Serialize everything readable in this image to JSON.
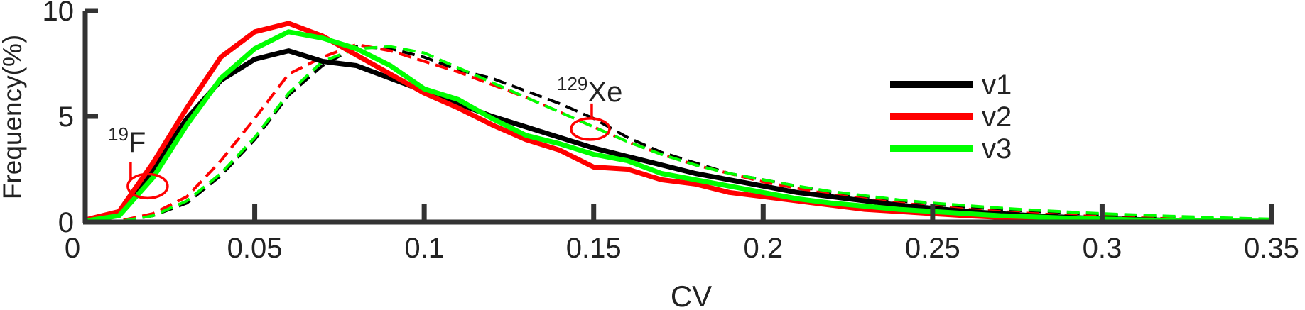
{
  "chart_data": {
    "type": "line",
    "xlabel": "CV",
    "ylabel": "Frequency(%)",
    "xlim": [
      0,
      0.35
    ],
    "ylim": [
      0,
      10
    ],
    "xticks": [
      0,
      0.05,
      0.1,
      0.15,
      0.2,
      0.25,
      0.3,
      0.35
    ],
    "xtick_labels": [
      "0",
      "0.05",
      "0.1",
      "0.15",
      "0.2",
      "0.25",
      "0.3",
      "0.35"
    ],
    "yticks": [
      0,
      5,
      10
    ],
    "ytick_labels": [
      "0",
      "5",
      "10"
    ],
    "grid": false,
    "legend_position": "upper-right",
    "series": [
      {
        "name": "v1",
        "group": "19F",
        "style": "solid",
        "color": "#000000",
        "x": [
          0,
          0.01,
          0.02,
          0.03,
          0.04,
          0.05,
          0.06,
          0.07,
          0.08,
          0.09,
          0.1,
          0.11,
          0.12,
          0.13,
          0.14,
          0.15,
          0.16,
          0.17,
          0.18,
          0.19,
          0.2,
          0.21,
          0.22,
          0.23,
          0.24,
          0.25,
          0.26,
          0.27,
          0.28,
          0.29,
          0.3,
          0.31,
          0.32,
          0.33,
          0.34,
          0.35
        ],
        "y": [
          0.05,
          0.4,
          2.5,
          4.9,
          6.7,
          7.7,
          8.1,
          7.6,
          7.4,
          6.8,
          6.2,
          5.6,
          5.0,
          4.5,
          4.0,
          3.5,
          3.1,
          2.7,
          2.3,
          2.0,
          1.7,
          1.4,
          1.2,
          1.0,
          0.8,
          0.65,
          0.5,
          0.4,
          0.3,
          0.22,
          0.16,
          0.12,
          0.08,
          0.06,
          0.04,
          0.02
        ]
      },
      {
        "name": "v2",
        "group": "19F",
        "style": "solid",
        "color": "#ff0000",
        "x": [
          0,
          0.01,
          0.02,
          0.03,
          0.04,
          0.05,
          0.06,
          0.07,
          0.08,
          0.09,
          0.1,
          0.11,
          0.12,
          0.13,
          0.14,
          0.15,
          0.16,
          0.17,
          0.18,
          0.19,
          0.2,
          0.21,
          0.22,
          0.23,
          0.24,
          0.25,
          0.26,
          0.27,
          0.28,
          0.29,
          0.3,
          0.31,
          0.32,
          0.33,
          0.34,
          0.35
        ],
        "y": [
          0.1,
          0.5,
          2.8,
          5.4,
          7.8,
          9.0,
          9.4,
          8.8,
          7.9,
          7.0,
          6.1,
          5.4,
          4.6,
          3.9,
          3.4,
          2.6,
          2.5,
          2.0,
          1.8,
          1.4,
          1.2,
          1.0,
          0.8,
          0.6,
          0.5,
          0.4,
          0.3,
          0.22,
          0.16,
          0.12,
          0.08,
          0.06,
          0.04,
          0.03,
          0.02,
          0.01
        ]
      },
      {
        "name": "v3",
        "group": "19F",
        "style": "solid",
        "color": "#00ff00",
        "x": [
          0,
          0.01,
          0.02,
          0.03,
          0.04,
          0.05,
          0.06,
          0.07,
          0.08,
          0.09,
          0.1,
          0.11,
          0.12,
          0.13,
          0.14,
          0.15,
          0.16,
          0.17,
          0.18,
          0.19,
          0.2,
          0.21,
          0.22,
          0.23,
          0.24,
          0.25,
          0.26,
          0.27,
          0.28,
          0.29,
          0.3,
          0.31,
          0.32,
          0.33,
          0.34,
          0.35
        ],
        "y": [
          0.05,
          0.3,
          2.1,
          4.6,
          6.8,
          8.2,
          9.0,
          8.7,
          8.2,
          7.4,
          6.3,
          5.8,
          4.9,
          4.1,
          3.7,
          3.2,
          2.9,
          2.3,
          2.0,
          1.7,
          1.4,
          1.1,
          0.9,
          0.75,
          0.6,
          0.5,
          0.4,
          0.3,
          0.24,
          0.18,
          0.14,
          0.1,
          0.08,
          0.06,
          0.05,
          0.04
        ]
      },
      {
        "name": "v1",
        "group": "129Xe",
        "style": "dashed",
        "color": "#000000",
        "x": [
          0,
          0.01,
          0.02,
          0.03,
          0.04,
          0.05,
          0.06,
          0.07,
          0.08,
          0.09,
          0.1,
          0.11,
          0.12,
          0.13,
          0.14,
          0.15,
          0.16,
          0.17,
          0.18,
          0.19,
          0.2,
          0.21,
          0.22,
          0.23,
          0.24,
          0.25,
          0.26,
          0.27,
          0.28,
          0.29,
          0.3,
          0.31,
          0.32,
          0.33,
          0.34,
          0.35
        ],
        "y": [
          0.0,
          0.02,
          0.3,
          0.9,
          2.2,
          3.9,
          6.0,
          7.4,
          8.3,
          8.2,
          7.8,
          7.2,
          6.8,
          6.2,
          5.6,
          4.9,
          4.0,
          3.3,
          2.8,
          2.3,
          2.0,
          1.7,
          1.4,
          1.2,
          1.0,
          0.85,
          0.7,
          0.6,
          0.5,
          0.42,
          0.34,
          0.28,
          0.22,
          0.17,
          0.12,
          0.08
        ]
      },
      {
        "name": "v2",
        "group": "129Xe",
        "style": "dashed",
        "color": "#ff0000",
        "x": [
          0,
          0.01,
          0.02,
          0.03,
          0.04,
          0.05,
          0.06,
          0.07,
          0.08,
          0.09,
          0.1,
          0.11,
          0.12,
          0.13,
          0.14,
          0.15,
          0.16,
          0.17,
          0.18,
          0.19,
          0.2,
          0.21,
          0.22,
          0.23,
          0.24,
          0.25,
          0.26,
          0.27,
          0.28,
          0.29,
          0.3,
          0.31,
          0.32,
          0.33,
          0.34,
          0.35
        ],
        "y": [
          0.0,
          0.05,
          0.4,
          1.2,
          2.9,
          4.9,
          7.0,
          7.8,
          8.4,
          8.1,
          7.6,
          7.1,
          6.5,
          5.9,
          5.2,
          4.5,
          3.8,
          3.2,
          2.7,
          2.3,
          1.9,
          1.6,
          1.3,
          1.1,
          0.9,
          0.75,
          0.6,
          0.5,
          0.4,
          0.32,
          0.26,
          0.2,
          0.16,
          0.12,
          0.09,
          0.06
        ]
      },
      {
        "name": "v3",
        "group": "129Xe",
        "style": "dashed",
        "color": "#00ff00",
        "x": [
          0,
          0.01,
          0.02,
          0.03,
          0.04,
          0.05,
          0.06,
          0.07,
          0.08,
          0.09,
          0.1,
          0.11,
          0.12,
          0.13,
          0.14,
          0.15,
          0.16,
          0.17,
          0.18,
          0.19,
          0.2,
          0.21,
          0.22,
          0.23,
          0.24,
          0.25,
          0.26,
          0.27,
          0.28,
          0.29,
          0.3,
          0.31,
          0.32,
          0.33,
          0.34,
          0.35
        ],
        "y": [
          0.0,
          0.02,
          0.3,
          1.0,
          2.3,
          4.0,
          6.1,
          7.6,
          8.2,
          8.3,
          8.0,
          7.3,
          6.6,
          5.9,
          5.2,
          4.5,
          3.8,
          3.2,
          2.7,
          2.3,
          2.0,
          1.7,
          1.45,
          1.25,
          1.05,
          0.9,
          0.78,
          0.66,
          0.56,
          0.48,
          0.4,
          0.34,
          0.28,
          0.23,
          0.18,
          0.14
        ]
      }
    ],
    "legend": [
      {
        "label": "v1",
        "color": "#000000"
      },
      {
        "label": "v2",
        "color": "#ff0000"
      },
      {
        "label": "v3",
        "color": "#00ff00"
      }
    ],
    "annotations": [
      {
        "sup": "19",
        "text": "F",
        "x": 0.018,
        "y": 1.7
      },
      {
        "sup": "129",
        "text": "Xe",
        "x": 0.149,
        "y": 4.4
      }
    ]
  }
}
